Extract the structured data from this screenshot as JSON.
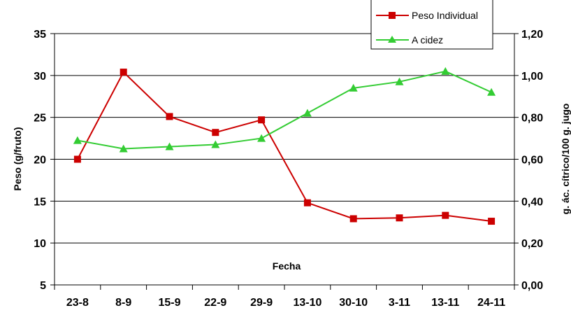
{
  "chart_data": {
    "type": "line",
    "categories": [
      "23-8",
      "8-9",
      "15-9",
      "22-9",
      "29-9",
      "13-10",
      "30-10",
      "3-11",
      "13-11",
      "24-11"
    ],
    "xlabel": "Fecha",
    "ylabel_left": "Peso (g/fruto)",
    "ylabel_right": "g. ác. cítrico/100 g. jugo",
    "ylim_left": [
      5,
      35
    ],
    "ylim_right": [
      0,
      1.2
    ],
    "yticks_left": [
      "5",
      "10",
      "15",
      "20",
      "25",
      "30",
      "35"
    ],
    "yticks_right": [
      "0,00",
      "0,20",
      "0,40",
      "0,60",
      "0,80",
      "1,00",
      "1,20"
    ],
    "grid": true,
    "legend_position": "top-right",
    "series": [
      {
        "name": "Peso Individual",
        "axis": "left",
        "color": "#cc0000",
        "marker": "square",
        "values": [
          20.0,
          30.4,
          25.1,
          23.2,
          24.7,
          14.8,
          12.9,
          13.0,
          13.3,
          12.6
        ]
      },
      {
        "name": "A cidez",
        "axis": "right",
        "color": "#33cc33",
        "marker": "triangle",
        "values": [
          0.69,
          0.65,
          0.66,
          0.67,
          0.7,
          0.82,
          0.94,
          0.97,
          1.02,
          0.92
        ]
      }
    ]
  }
}
